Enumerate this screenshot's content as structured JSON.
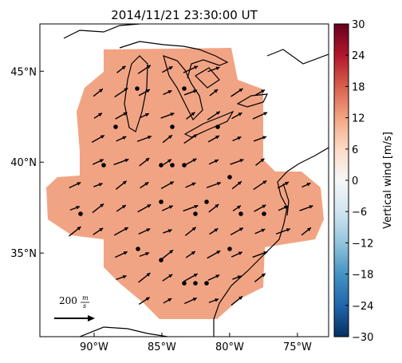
{
  "chart_data": {
    "type": "map",
    "title": "2014/11/21 23:30:00 UT",
    "xlim": [
      -94,
      -72.7
    ],
    "ylim": [
      30.4,
      47.6
    ],
    "xticks": [
      {
        "value": -90,
        "label": "90°W"
      },
      {
        "value": -85,
        "label": "85°W"
      },
      {
        "value": -80,
        "label": "80°W"
      },
      {
        "value": -75,
        "label": "75°W"
      }
    ],
    "yticks": [
      {
        "value": 35,
        "label": "35°N"
      },
      {
        "value": 40,
        "label": "40°N"
      },
      {
        "value": 45,
        "label": "45°N"
      }
    ],
    "field_value": 11,
    "field_color": "#f1a484",
    "colorbar_label": "Vertical wind [m/s]",
    "clim": [
      -30,
      30
    ],
    "cticks": [
      {
        "value": -30,
        "label": "−30"
      },
      {
        "value": -24,
        "label": "−24"
      },
      {
        "value": -18,
        "label": "−18"
      },
      {
        "value": -12,
        "label": "−12"
      },
      {
        "value": -6,
        "label": "−6"
      },
      0,
      6,
      12,
      18,
      24,
      30
    ],
    "colormap": [
      "#053061",
      "#2166ac",
      "#4393c3",
      "#92c5de",
      "#d1e5f0",
      "#f7f7f7",
      "#fddbc7",
      "#f4a582",
      "#d6604d",
      "#b2182b",
      "#67001f"
    ],
    "scale_value": "200",
    "scale_unit_num": "m",
    "scale_unit_den": "s"
  }
}
